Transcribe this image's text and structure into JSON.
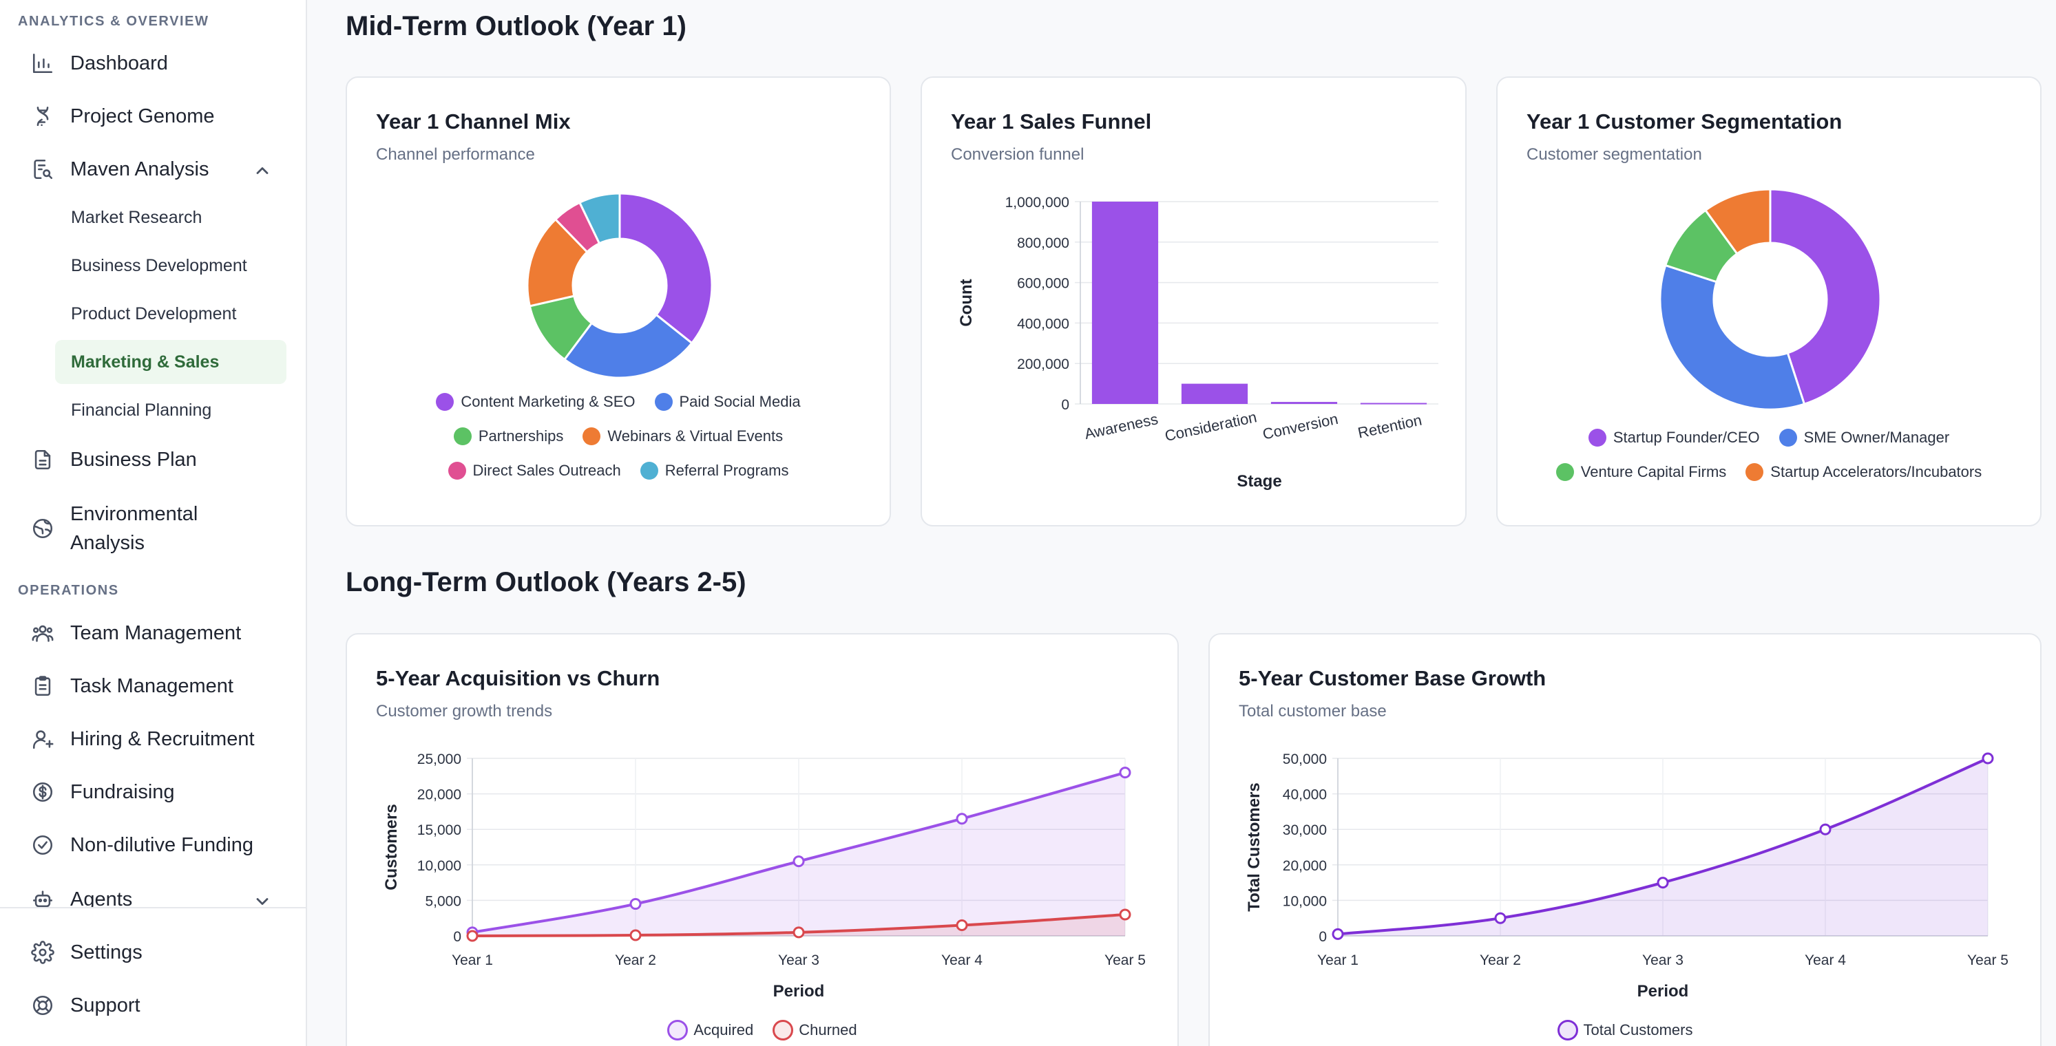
{
  "sidebar": {
    "section_analytics": "ANALYTICS & OVERVIEW",
    "section_operations": "OPERATIONS",
    "items": {
      "dashboard": "Dashboard",
      "project_genome": "Project Genome",
      "maven_analysis": "Maven Analysis",
      "business_plan": "Business Plan",
      "environmental_1": "Environmental",
      "environmental_2": "Analysis",
      "team_management": "Team Management",
      "task_management": "Task Management",
      "hiring": "Hiring & Recruitment",
      "fundraising": "Fundraising",
      "non_dilutive": "Non-dilutive Funding",
      "agents": "Agents",
      "settings": "Settings",
      "support": "Support"
    },
    "sub_items": {
      "market_research": "Market Research",
      "business_development": "Business Development",
      "product_development": "Product Development",
      "marketing_sales": "Marketing & Sales",
      "financial_planning": "Financial Planning"
    }
  },
  "main": {
    "mid_term_heading": "Mid-Term Outlook (Year 1)",
    "long_term_heading": "Long-Term Outlook (Years 2-5)"
  },
  "colors": {
    "purple": "#9b51e8",
    "blue": "#4f7fe8",
    "green": "#5cc264",
    "orange": "#ee7b33",
    "pink": "#e04f92",
    "teal": "#4fb0d3",
    "red": "#d9484d",
    "line_purple": "#7e2fd6"
  },
  "cards": {
    "channel_mix": {
      "title": "Year 1 Channel Mix",
      "subtitle": "Channel performance"
    },
    "sales_funnel": {
      "title": "Year 1 Sales Funnel",
      "subtitle": "Conversion funnel"
    },
    "segmentation": {
      "title": "Year 1 Customer Segmentation",
      "subtitle": "Customer segmentation"
    },
    "acq_churn": {
      "title": "5-Year Acquisition vs Churn",
      "subtitle": "Customer growth trends"
    },
    "base_growth": {
      "title": "5-Year Customer Base Growth",
      "subtitle": "Total customer base"
    }
  },
  "chart_data": [
    {
      "type": "pie",
      "title": "Year 1 Channel Mix",
      "categories": [
        "Content Marketing & SEO",
        "Paid Social Media",
        "Partnerships",
        "Webinars & Virtual Events",
        "Direct Sales Outreach",
        "Referral Programs"
      ],
      "values": [
        35,
        24,
        11,
        16,
        5,
        7
      ]
    },
    {
      "type": "bar",
      "title": "Year 1 Sales Funnel",
      "categories": [
        "Awareness",
        "Consideration",
        "Conversion",
        "Retention"
      ],
      "values": [
        1000000,
        100000,
        10000,
        5000
      ],
      "xlabel": "Stage",
      "ylabel": "Count",
      "yticks": [
        "0",
        "200,000",
        "400,000",
        "600,000",
        "800,000",
        "1,000,000"
      ],
      "ylim": [
        0,
        1000000
      ]
    },
    {
      "type": "pie",
      "title": "Year 1 Customer Segmentation",
      "categories": [
        "Startup Founder/CEO",
        "SME Owner/Manager",
        "Venture Capital Firms",
        "Startup Accelerators/Incubators"
      ],
      "values": [
        45,
        35,
        10,
        10
      ]
    },
    {
      "type": "area",
      "title": "5-Year Acquisition vs Churn",
      "x": [
        "Year 1",
        "Year 2",
        "Year 3",
        "Year 4",
        "Year 5"
      ],
      "series": [
        {
          "name": "Acquired",
          "values": [
            500,
            4500,
            10500,
            16500,
            23000
          ]
        },
        {
          "name": "Churned",
          "values": [
            0,
            100,
            500,
            1500,
            3000
          ]
        }
      ],
      "xlabel": "Period",
      "ylabel": "Customers",
      "yticks": [
        "0",
        "5,000",
        "10,000",
        "15,000",
        "20,000",
        "25,000"
      ],
      "ylim": [
        0,
        25000
      ]
    },
    {
      "type": "area",
      "title": "5-Year Customer Base Growth",
      "x": [
        "Year 1",
        "Year 2",
        "Year 3",
        "Year 4",
        "Year 5"
      ],
      "series": [
        {
          "name": "Total Customers",
          "values": [
            500,
            5000,
            15000,
            30000,
            50000
          ]
        }
      ],
      "xlabel": "Period",
      "ylabel": "Total Customers",
      "yticks": [
        "0",
        "10,000",
        "20,000",
        "30,000",
        "40,000",
        "50,000"
      ],
      "ylim": [
        0,
        50000
      ]
    }
  ]
}
